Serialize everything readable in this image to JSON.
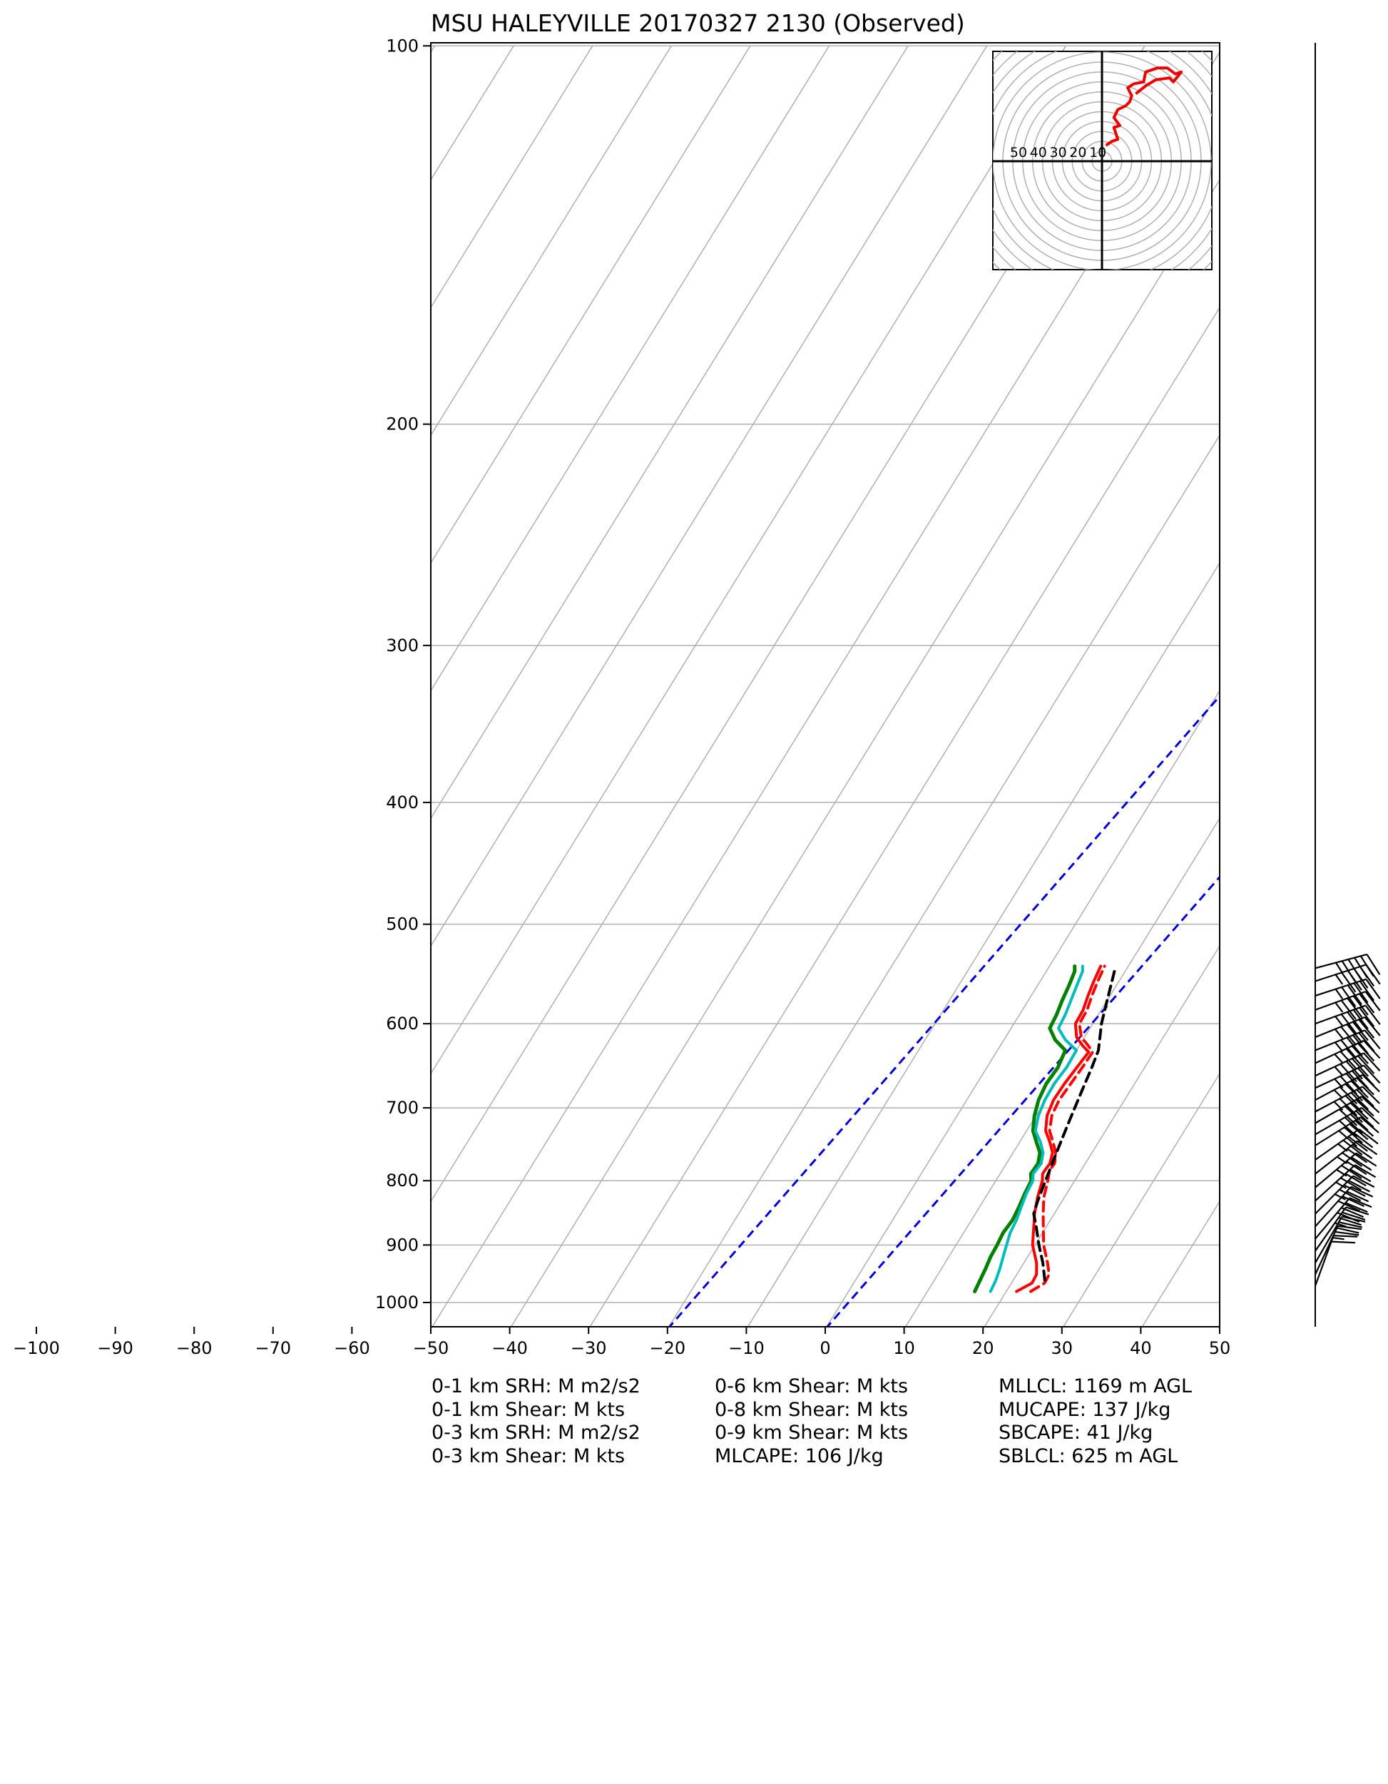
{
  "title": "MSU HALEYVILLE 20170327 2130   (Observed)",
  "colors": {
    "temperature": "#ff0000",
    "virtual_temperature": "#ff0000",
    "dewpoint": "#008000",
    "wetbulb": "#00bcbc",
    "parcel": "#000000",
    "mixing_ratio": "#0000dd",
    "grid": "#b0b0b0",
    "hodograph": "#ee0000"
  },
  "chart_data": {
    "type": "line",
    "chart_kind": "skew-T log-p",
    "x_scale": "skewed temperature (degC)",
    "y_scale": "log pressure (hPa), inverted",
    "xlim": [
      -50,
      50
    ],
    "ylim": [
      1050,
      100
    ],
    "x_ticks": [
      -100,
      -90,
      -80,
      -70,
      -60,
      -50,
      -40,
      -30,
      -20,
      -10,
      0,
      10,
      20,
      30,
      40,
      50
    ],
    "y_ticks": [
      100,
      200,
      300,
      400,
      500,
      600,
      700,
      800,
      900,
      1000
    ],
    "grid": true,
    "isotherm_step": 10,
    "mixing_ratio_dashed_lines_degC_at_1000hPa": [
      -20,
      0
    ],
    "series": [
      {
        "key": "temperature",
        "style": "solid",
        "points": [
          [
            980,
            21.3
          ],
          [
            965,
            22.6
          ],
          [
            950,
            22.5
          ],
          [
            930,
            21.6
          ],
          [
            900,
            19.7
          ],
          [
            870,
            18.4
          ],
          [
            850,
            17.5
          ],
          [
            825,
            16.6
          ],
          [
            800,
            15.9
          ],
          [
            790,
            15.4
          ],
          [
            785,
            15.4
          ],
          [
            775,
            15.5
          ],
          [
            760,
            15.0
          ],
          [
            745,
            13.8
          ],
          [
            730,
            12.4
          ],
          [
            710,
            11.4
          ],
          [
            690,
            11.0
          ],
          [
            670,
            11.1
          ],
          [
            650,
            11.4
          ],
          [
            632,
            11.7
          ],
          [
            625,
            10.5
          ],
          [
            615,
            9.0
          ],
          [
            600,
            7.8
          ],
          [
            585,
            7.7
          ],
          [
            570,
            7.2
          ],
          [
            555,
            6.8
          ],
          [
            540,
            6.5
          ]
        ]
      },
      {
        "key": "virtual_temperature",
        "style": "dashed",
        "points": [
          [
            980,
            23.1
          ],
          [
            965,
            24.2
          ],
          [
            950,
            24.1
          ],
          [
            930,
            23.0
          ],
          [
            900,
            21.1
          ],
          [
            870,
            19.6
          ],
          [
            850,
            18.6
          ],
          [
            825,
            17.4
          ],
          [
            800,
            16.6
          ],
          [
            785,
            16.0
          ],
          [
            775,
            16.1
          ],
          [
            760,
            15.4
          ],
          [
            745,
            14.2
          ],
          [
            730,
            12.9
          ],
          [
            710,
            12.0
          ],
          [
            690,
            11.7
          ],
          [
            670,
            11.9
          ],
          [
            650,
            12.1
          ],
          [
            632,
            12.2
          ],
          [
            625,
            11.2
          ],
          [
            615,
            9.6
          ],
          [
            600,
            8.3
          ],
          [
            585,
            8.2
          ],
          [
            570,
            7.7
          ],
          [
            555,
            7.3
          ],
          [
            540,
            7.0
          ]
        ]
      },
      {
        "key": "dewpoint",
        "style": "solid",
        "points": [
          [
            980,
            16.0
          ],
          [
            960,
            15.8
          ],
          [
            940,
            15.6
          ],
          [
            920,
            15.3
          ],
          [
            900,
            15.2
          ],
          [
            880,
            15.0
          ],
          [
            860,
            15.2
          ],
          [
            840,
            15.0
          ],
          [
            820,
            14.7
          ],
          [
            800,
            14.5
          ],
          [
            790,
            13.9
          ],
          [
            775,
            14.0
          ],
          [
            760,
            13.4
          ],
          [
            745,
            12.1
          ],
          [
            730,
            10.8
          ],
          [
            710,
            9.8
          ],
          [
            690,
            9.1
          ],
          [
            670,
            8.8
          ],
          [
            650,
            9.0
          ],
          [
            630,
            8.6
          ],
          [
            618,
            6.5
          ],
          [
            605,
            4.9
          ],
          [
            590,
            4.7
          ],
          [
            575,
            4.3
          ],
          [
            560,
            4.0
          ],
          [
            545,
            3.6
          ],
          [
            540,
            3.2
          ]
        ]
      },
      {
        "key": "wetbulb",
        "style": "solid",
        "points": [
          [
            980,
            18.0
          ],
          [
            960,
            17.8
          ],
          [
            940,
            17.4
          ],
          [
            920,
            16.9
          ],
          [
            900,
            16.4
          ],
          [
            880,
            15.9
          ],
          [
            860,
            15.7
          ],
          [
            840,
            15.3
          ],
          [
            820,
            14.9
          ],
          [
            800,
            14.7
          ],
          [
            790,
            14.2
          ],
          [
            775,
            14.4
          ],
          [
            760,
            13.8
          ],
          [
            745,
            12.6
          ],
          [
            730,
            11.1
          ],
          [
            710,
            10.3
          ],
          [
            690,
            9.9
          ],
          [
            670,
            9.8
          ],
          [
            650,
            10.1
          ],
          [
            630,
            10.0
          ],
          [
            618,
            7.8
          ],
          [
            605,
            6.0
          ],
          [
            590,
            5.8
          ],
          [
            575,
            5.4
          ],
          [
            560,
            5.0
          ],
          [
            545,
            4.6
          ],
          [
            540,
            4.2
          ]
        ]
      },
      {
        "key": "parcel",
        "style": "dashed",
        "points": [
          [
            960,
            24.0
          ],
          [
            930,
            22.4
          ],
          [
            900,
            20.5
          ],
          [
            870,
            18.7
          ],
          [
            850,
            17.4
          ],
          [
            830,
            16.9
          ],
          [
            800,
            16.3
          ],
          [
            760,
            15.5
          ],
          [
            720,
            14.7
          ],
          [
            680,
            13.9
          ],
          [
            650,
            13.3
          ],
          [
            630,
            12.8
          ],
          [
            600,
            11.1
          ],
          [
            575,
            10.0
          ],
          [
            555,
            9.1
          ],
          [
            540,
            8.4
          ]
        ]
      }
    ],
    "wind_barbs": {
      "units": "kts",
      "levels": [
        {
          "p": 970,
          "dir": 200,
          "spd": 20
        },
        {
          "p": 950,
          "dir": 205,
          "spd": 25
        },
        {
          "p": 930,
          "dir": 210,
          "spd": 30
        },
        {
          "p": 910,
          "dir": 215,
          "spd": 35
        },
        {
          "p": 890,
          "dir": 220,
          "spd": 40
        },
        {
          "p": 870,
          "dir": 222,
          "spd": 40
        },
        {
          "p": 850,
          "dir": 225,
          "spd": 45
        },
        {
          "p": 830,
          "dir": 228,
          "spd": 45
        },
        {
          "p": 810,
          "dir": 230,
          "spd": 45
        },
        {
          "p": 790,
          "dir": 232,
          "spd": 45
        },
        {
          "p": 770,
          "dir": 235,
          "spd": 45
        },
        {
          "p": 750,
          "dir": 238,
          "spd": 50
        },
        {
          "p": 735,
          "dir": 240,
          "spd": 50
        },
        {
          "p": 720,
          "dir": 240,
          "spd": 50
        },
        {
          "p": 705,
          "dir": 242,
          "spd": 55
        },
        {
          "p": 690,
          "dir": 242,
          "spd": 55
        },
        {
          "p": 675,
          "dir": 245,
          "spd": 55
        },
        {
          "p": 660,
          "dir": 245,
          "spd": 55
        },
        {
          "p": 645,
          "dir": 245,
          "spd": 55
        },
        {
          "p": 630,
          "dir": 248,
          "spd": 55
        },
        {
          "p": 615,
          "dir": 248,
          "spd": 55
        },
        {
          "p": 600,
          "dir": 250,
          "spd": 55
        },
        {
          "p": 585,
          "dir": 250,
          "spd": 55
        },
        {
          "p": 570,
          "dir": 252,
          "spd": 55
        },
        {
          "p": 555,
          "dir": 252,
          "spd": 55
        },
        {
          "p": 542,
          "dir": 255,
          "spd": 55
        }
      ]
    },
    "hodograph": {
      "ring_labels": [
        "50",
        "40",
        "30",
        "20",
        "10"
      ],
      "ring_step_kts": 10,
      "max_kts": 60,
      "trace_uv_kts": [
        [
          2,
          8
        ],
        [
          5,
          10
        ],
        [
          8,
          11
        ],
        [
          7,
          14
        ],
        [
          6,
          17
        ],
        [
          9,
          18
        ],
        [
          6,
          22
        ],
        [
          8,
          26
        ],
        [
          12,
          28
        ],
        [
          14,
          30
        ],
        [
          15,
          33
        ],
        [
          13,
          37
        ],
        [
          16,
          39
        ],
        [
          21,
          40
        ],
        [
          22,
          45
        ],
        [
          28,
          47
        ],
        [
          33,
          47
        ],
        [
          37,
          44
        ],
        [
          40,
          45
        ],
        [
          36,
          40
        ],
        [
          34,
          42
        ],
        [
          27,
          41
        ],
        [
          22,
          38
        ],
        [
          17,
          34
        ]
      ]
    }
  },
  "params": {
    "col1": [
      "0-1 km SRH: M m2/s2",
      "0-1 km Shear: M kts",
      "0-3 km SRH: M m2/s2",
      "0-3 km Shear: M kts"
    ],
    "col2": [
      "0-6 km Shear: M kts",
      "0-8 km Shear: M kts",
      "0-9 km Shear: M kts",
      "MLCAPE: 106 J/kg"
    ],
    "col3": [
      "MLLCL: 1169 m AGL",
      "MUCAPE: 137 J/kg",
      "SBCAPE: 41 J/kg",
      "SBLCL: 625 m AGL"
    ]
  }
}
